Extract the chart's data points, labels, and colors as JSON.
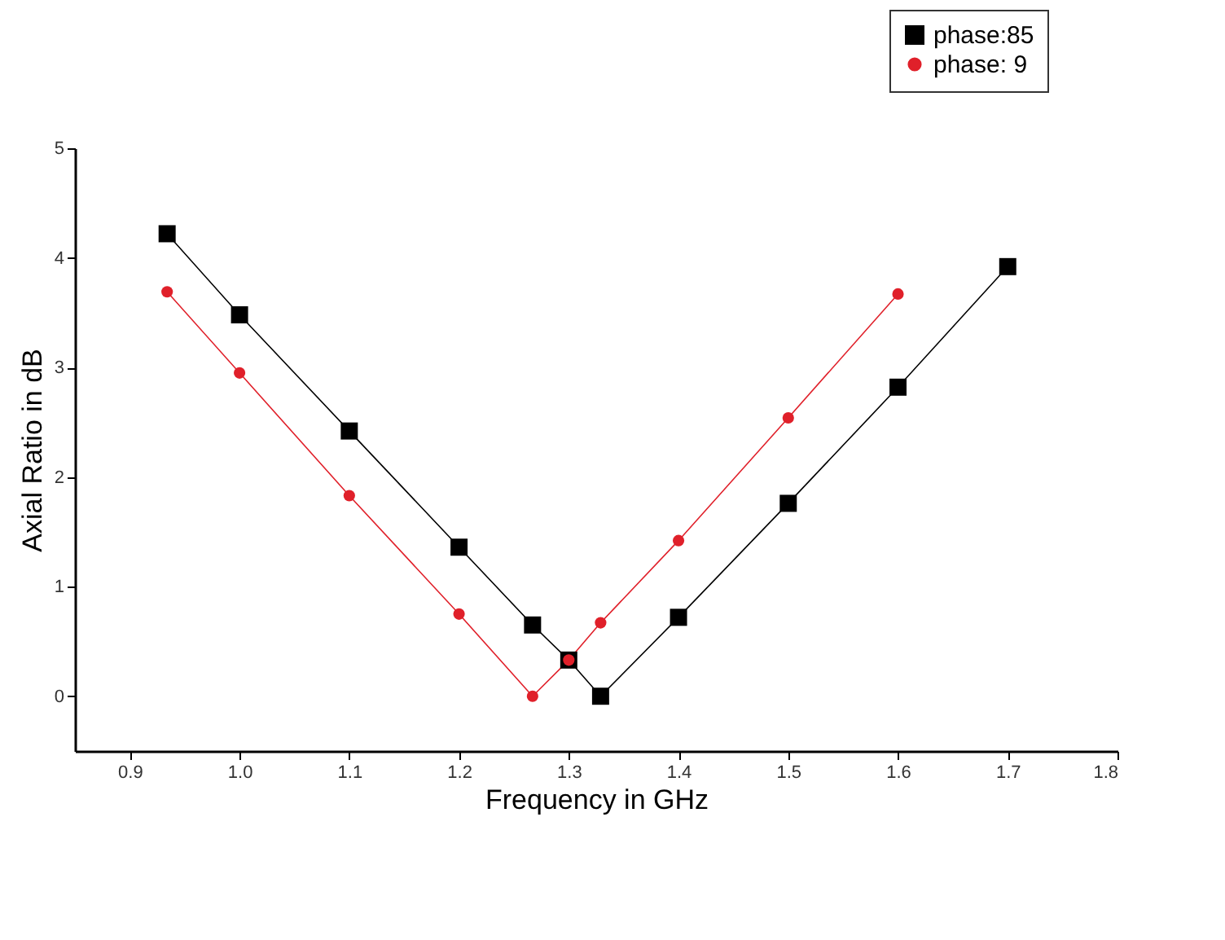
{
  "chart_data": {
    "type": "line",
    "xlabel": "Frequency in GHz",
    "ylabel": "Axial Ratio in dB",
    "series": [
      {
        "name": "phase:85",
        "color": "#000000",
        "marker": "square",
        "values": [
          4.22,
          3.48,
          2.42,
          1.36,
          0.65,
          0.33,
          0.0,
          0.72,
          1.76,
          2.82,
          3.92
        ],
        "x": [
          0.934,
          1.0,
          1.1,
          1.2,
          1.267,
          1.3,
          1.329,
          1.4,
          1.5,
          1.6,
          1.7
        ]
      },
      {
        "name": "phase: 9",
        "color": "#e0202a",
        "marker": "circle",
        "values": [
          3.69,
          2.95,
          1.83,
          0.75,
          0.0,
          0.33,
          0.67,
          1.42,
          2.54,
          3.67
        ],
        "x": [
          0.934,
          1.0,
          1.1,
          1.2,
          1.267,
          1.3,
          1.329,
          1.4,
          1.5,
          1.6
        ]
      }
    ],
    "xlim": [
      0.85,
      1.8
    ],
    "xticks": [
      0.9,
      {
        "value": 1.0,
        "label": "1.0"
      },
      1.1,
      1.2,
      1.3,
      1.4,
      1.5,
      1.6,
      1.7,
      1.8
    ],
    "ylim": [
      -0.5,
      5
    ],
    "yticks": [
      0,
      1,
      2,
      3,
      4,
      5
    ],
    "grid": false,
    "legend": "top right",
    "line_style": "solid"
  }
}
